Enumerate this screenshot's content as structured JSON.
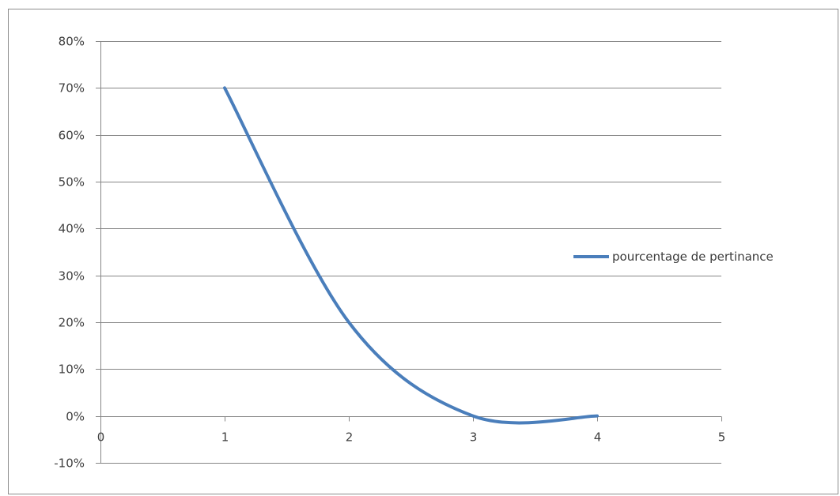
{
  "chart_data": {
    "type": "line",
    "title": "",
    "xlabel": "",
    "ylabel": "",
    "x": [
      1,
      2,
      3,
      4
    ],
    "xlim": [
      0,
      5
    ],
    "xticks": [
      "0",
      "1",
      "2",
      "3",
      "4",
      "5"
    ],
    "ylim": [
      -0.1,
      0.8
    ],
    "yticks": [
      "80%",
      "70%",
      "60%",
      "50%",
      "40%",
      "30%",
      "20%",
      "10%",
      "0%",
      "-10%"
    ],
    "grid": "horizontal",
    "smooth": true,
    "legend": "right",
    "series": [
      {
        "name": "pourcentage de pertinance",
        "color": "#4a7ebb",
        "values": [
          0.7,
          0.2,
          0.0,
          0.0
        ]
      }
    ]
  }
}
